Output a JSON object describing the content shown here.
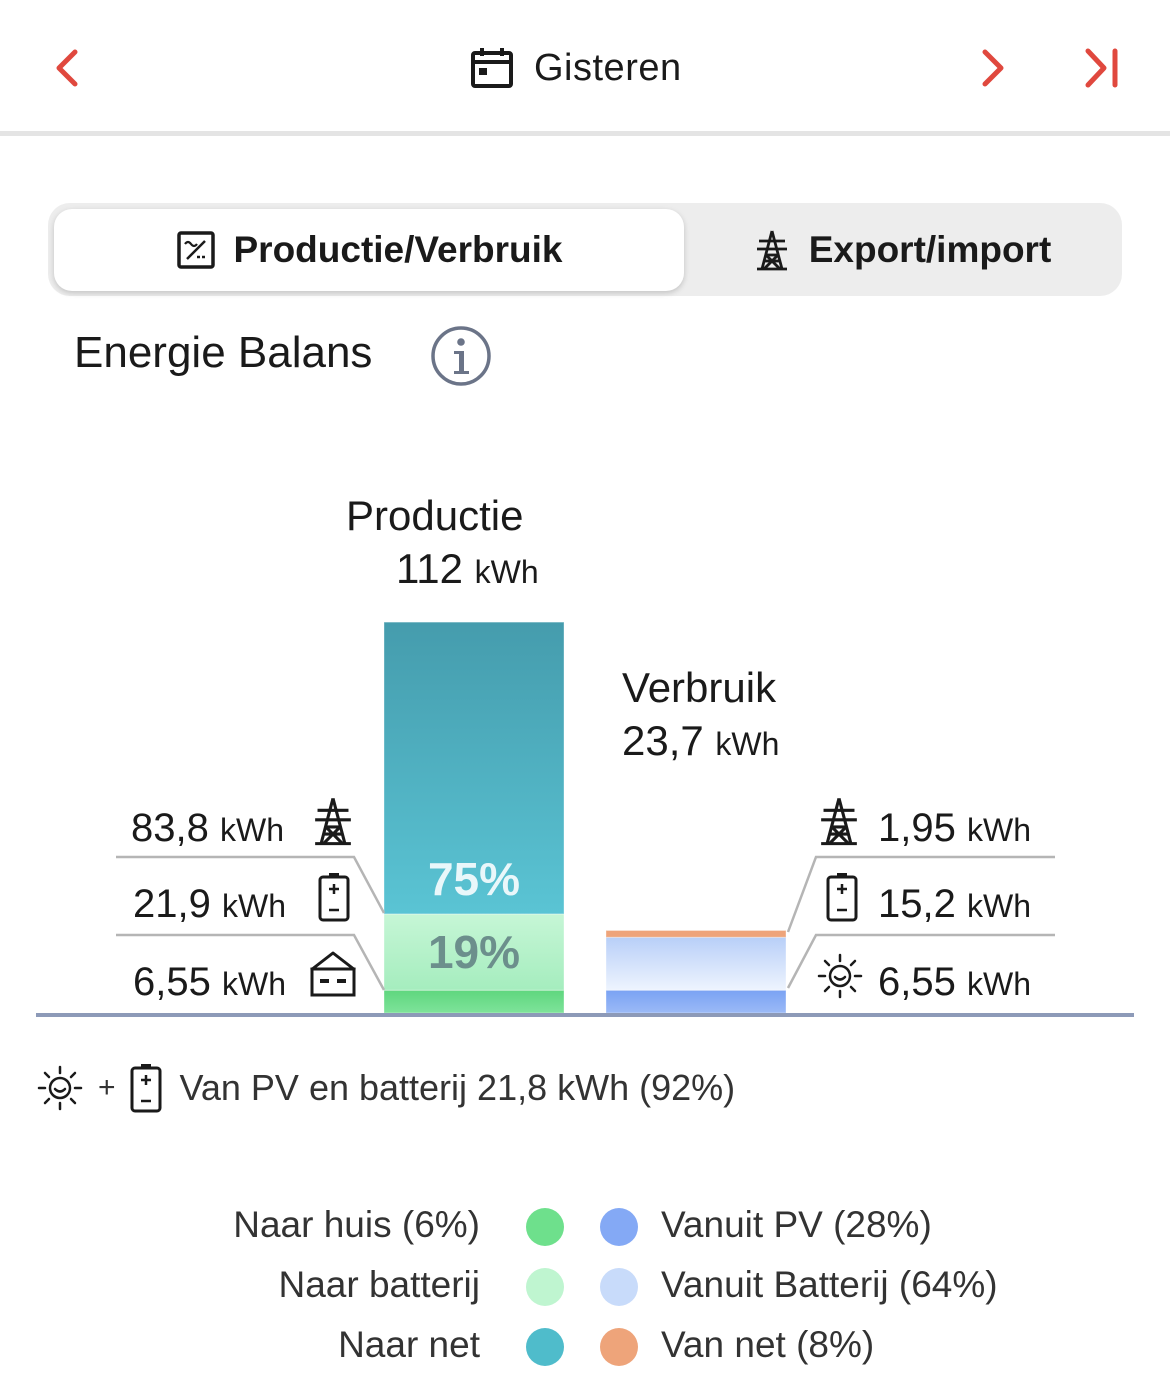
{
  "header": {
    "date_label": "Gisteren",
    "accent_color": "#e0483e"
  },
  "tabs": [
    {
      "label": "Productie/Verbruik",
      "icon": "inverter-icon",
      "active": true
    },
    {
      "label": "Export/import",
      "icon": "pylon-icon",
      "active": false
    }
  ],
  "section": {
    "title": "Energie Balans"
  },
  "production": {
    "title": "Productie",
    "value": "112",
    "unit": "kWh",
    "rows": [
      {
        "value": "83,8",
        "unit": "kWh",
        "icon": "pylon-icon"
      },
      {
        "value": "21,9",
        "unit": "kWh",
        "icon": "battery-icon"
      },
      {
        "value": "6,55",
        "unit": "kWh",
        "icon": "house-icon"
      }
    ],
    "pct_net": "75%",
    "pct_battery": "19%"
  },
  "consumption": {
    "title": "Verbruik",
    "value": "23,7",
    "unit": "kWh",
    "rows": [
      {
        "value": "1,95",
        "unit": "kWh",
        "icon": "pylon-icon"
      },
      {
        "value": "15,2",
        "unit": "kWh",
        "icon": "battery-icon"
      },
      {
        "value": "6,55",
        "unit": "kWh",
        "icon": "sun-icon"
      }
    ]
  },
  "summary": {
    "plus": "+",
    "text": "Van PV en batterij 21,8 kWh (92%)"
  },
  "legend": {
    "left": [
      {
        "label": "Naar huis (6%)",
        "color": "#6ee08c"
      },
      {
        "label": "Naar batterij",
        "color": "#bff5d0"
      },
      {
        "label": "Naar net",
        "color": "#4fbccb"
      }
    ],
    "right": [
      {
        "label": "Vanuit PV (28%)",
        "color": "#84a9f5"
      },
      {
        "label": "Vanuit Batterij (64%)",
        "color": "#c8dbfa"
      },
      {
        "label": "Van net (8%)",
        "color": "#eea47a"
      }
    ]
  },
  "chart_data": {
    "type": "bar",
    "categories": [
      "Productie",
      "Verbruik"
    ],
    "series": [
      {
        "name": "Naar huis (6%)",
        "values": [
          6.55,
          null
        ]
      },
      {
        "name": "Naar batterij",
        "values": [
          21.9,
          null
        ]
      },
      {
        "name": "Naar net",
        "values": [
          83.8,
          null
        ]
      },
      {
        "name": "Vanuit PV (28%)",
        "values": [
          null,
          6.55
        ]
      },
      {
        "name": "Vanuit Batterij (64%)",
        "values": [
          null,
          15.2
        ]
      },
      {
        "name": "Van net (8%)",
        "values": [
          null,
          1.95
        ]
      }
    ],
    "totals": [
      112,
      23.7
    ],
    "stacked": true,
    "legend_position": "bottom"
  }
}
